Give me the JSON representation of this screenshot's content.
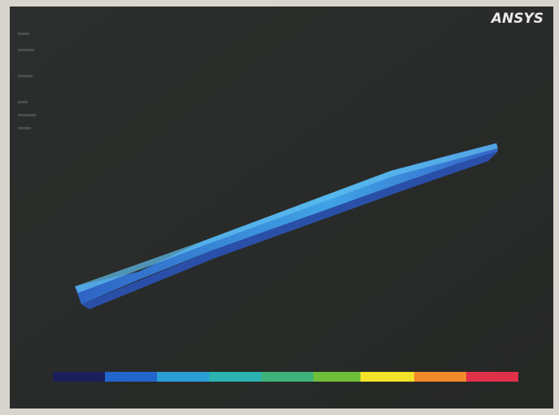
{
  "logo": "ANSYS"
}
